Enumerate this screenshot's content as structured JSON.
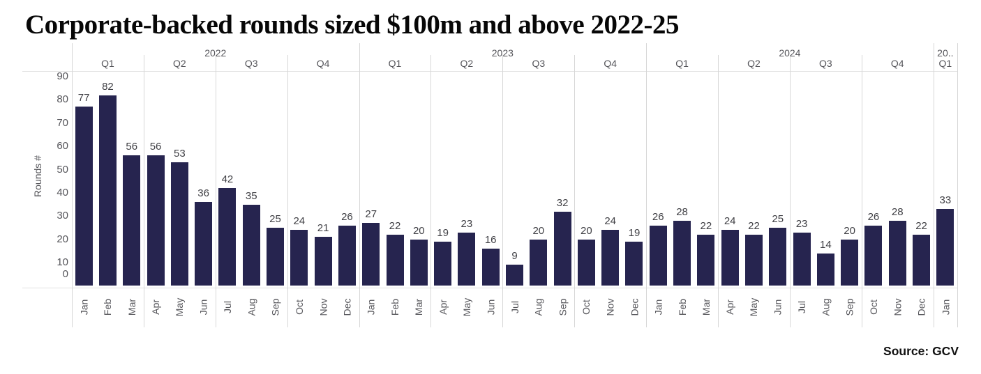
{
  "title": "Corporate-backed rounds sized $100m and above 2022-25",
  "source_credit": "Source: GCV",
  "chart_data": {
    "type": "bar",
    "title": "Corporate-backed rounds sized $100m and above 2022-25",
    "xlabel": "",
    "ylabel": "Rounds #",
    "ylim": [
      0,
      90
    ],
    "y_ticks": [
      0,
      10,
      20,
      30,
      40,
      50,
      60,
      70,
      80,
      90
    ],
    "legend": "none",
    "grid": "quarter/year vertical separators; pane top and bottom borders only",
    "bar_color": "#26244f",
    "year_groups": [
      {
        "label": "2022",
        "months": 12
      },
      {
        "label": "2023",
        "months": 12
      },
      {
        "label": "2024",
        "months": 12
      },
      {
        "label": "20..",
        "months": 1
      }
    ],
    "quarter_labels": [
      "Q1",
      "Q2",
      "Q3",
      "Q4",
      "Q1",
      "Q2",
      "Q3",
      "Q4",
      "Q1",
      "Q2",
      "Q3",
      "Q4",
      "Q1"
    ],
    "categories": [
      "Jan",
      "Feb",
      "Mar",
      "Apr",
      "May",
      "Jun",
      "Jul",
      "Aug",
      "Sep",
      "Oct",
      "Nov",
      "Dec",
      "Jan",
      "Feb",
      "Mar",
      "Apr",
      "May",
      "Jun",
      "Jul",
      "Aug",
      "Sep",
      "Oct",
      "Nov",
      "Dec",
      "Jan",
      "Feb",
      "Mar",
      "Apr",
      "May",
      "Jun",
      "Jul",
      "Aug",
      "Sep",
      "Oct",
      "Nov",
      "Dec",
      "Jan"
    ],
    "values": [
      77,
      82,
      56,
      56,
      53,
      36,
      42,
      35,
      25,
      24,
      21,
      26,
      27,
      22,
      20,
      19,
      23,
      16,
      9,
      20,
      32,
      20,
      24,
      19,
      26,
      28,
      22,
      24,
      22,
      25,
      23,
      14,
      20,
      26,
      28,
      22,
      33
    ]
  }
}
